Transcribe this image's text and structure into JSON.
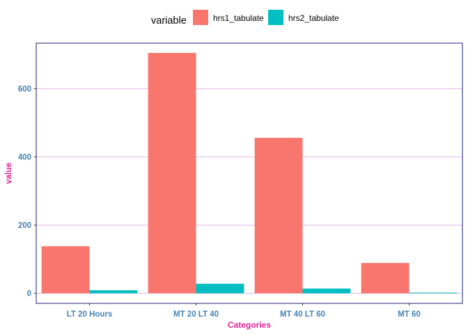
{
  "chart_data": {
    "type": "bar",
    "title": "",
    "xlabel": "Categories",
    "ylabel": "value",
    "categories": [
      "LT 20 Hours",
      "MT 20 LT 40",
      "MT 40 LT 60",
      "MT 60"
    ],
    "series": [
      {
        "name": "hrs1_tabulate",
        "values": [
          138,
          705,
          456,
          89
        ],
        "color": "#F8766D"
      },
      {
        "name": "hrs2_tabulate",
        "values": [
          9,
          28,
          14,
          2
        ],
        "color": "#00BFC4"
      }
    ],
    "ylim": [
      0,
      720
    ],
    "yticks": [
      0,
      200,
      400,
      600
    ],
    "legend": {
      "title": "variable",
      "position": "top"
    },
    "grid": {
      "horizontal": true,
      "color": "#DDA0DD"
    },
    "panel_border_color": "#1F1F7A"
  }
}
